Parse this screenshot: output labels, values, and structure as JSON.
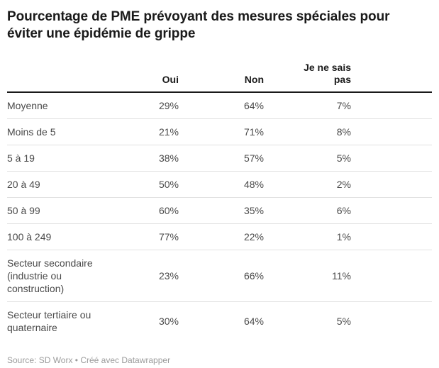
{
  "title": "Pourcentage de PME prévoyant des mesures spéciales pour éviter une épidémie de grippe",
  "footer": {
    "text": "Source: SD Worx • Créé avec Datawrapper"
  },
  "colors": {
    "title_text": "#1a1a1a",
    "body_text": "#494949",
    "header_rule": "#1a1a1a",
    "row_divider": "#e1e1e1",
    "footer_text": "#9b9b9b",
    "background": "#ffffff"
  },
  "chart_data": {
    "type": "table",
    "title": "Pourcentage de PME prévoyant des mesures spéciales pour éviter une épidémie de grippe",
    "unit": "%",
    "source": "SD Worx",
    "created_with": "Datawrapper",
    "categories": [
      "Moyenne",
      "Moins de 5",
      "5 à 19",
      "20 à 49",
      "50 à 99",
      "100 à 249",
      "Secteur secondaire (industrie ou construction)",
      "Secteur tertiaire ou quaternaire"
    ],
    "series": [
      {
        "name": "Oui",
        "values": [
          29,
          21,
          38,
          50,
          60,
          77,
          23,
          30
        ]
      },
      {
        "name": "Non",
        "values": [
          64,
          71,
          57,
          48,
          35,
          22,
          66,
          64
        ]
      },
      {
        "name": "Je ne sais pas",
        "values": [
          7,
          8,
          5,
          2,
          6,
          1,
          11,
          5
        ]
      }
    ],
    "layout": {
      "numeric_alignment": "right",
      "grid": "horizontal-dividers"
    }
  }
}
